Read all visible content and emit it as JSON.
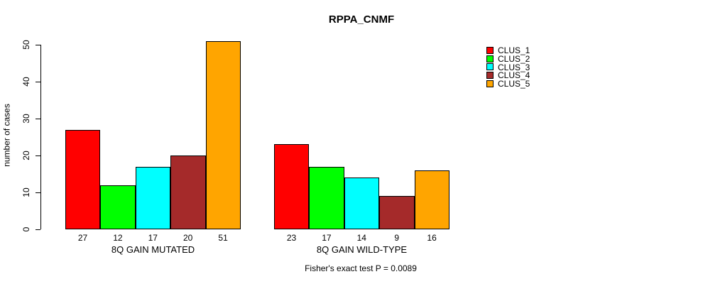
{
  "chart_data": {
    "type": "bar",
    "title": "RPPA_CNMF",
    "xlabel": "",
    "ylabel": "number of cases",
    "categories": [
      "8Q GAIN MUTATED",
      "8Q GAIN WILD-TYPE"
    ],
    "series": [
      {
        "name": "CLUS_1",
        "color": "#ff0000",
        "values": [
          27,
          23
        ]
      },
      {
        "name": "CLUS_2",
        "color": "#00ff00",
        "values": [
          12,
          17
        ]
      },
      {
        "name": "CLUS_3",
        "color": "#00ffff",
        "values": [
          17,
          14
        ]
      },
      {
        "name": "CLUS_4",
        "color": "#a52a2a",
        "values": [
          20,
          9
        ]
      },
      {
        "name": "CLUS_5",
        "color": "#ffa500",
        "values": [
          51,
          16
        ]
      }
    ],
    "yticks": [
      0,
      10,
      20,
      30,
      40,
      50
    ],
    "ylim": [
      0,
      51
    ],
    "grid": false,
    "legend_position": "right",
    "bar_value_labels": true,
    "annotation": "Fisher's exact test P = 0.0089"
  }
}
